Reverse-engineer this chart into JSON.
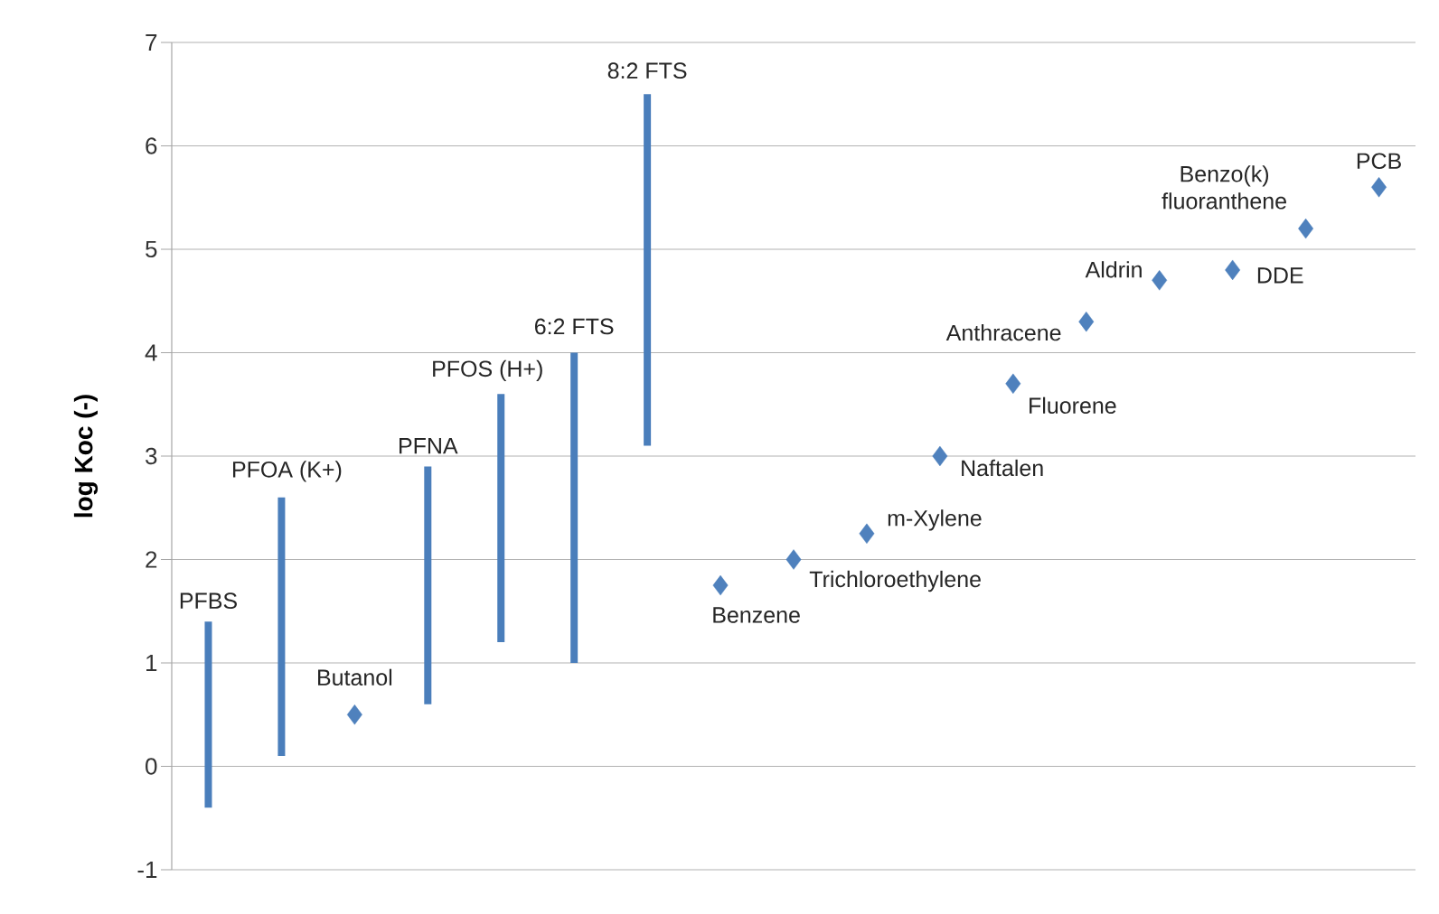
{
  "chart_data": {
    "type": "bar",
    "ylabel": "log Koc (-)",
    "categories": [
      null,
      null,
      null,
      null,
      null,
      null,
      null,
      null,
      null,
      null,
      null,
      null,
      null,
      null,
      null,
      null,
      null
    ],
    "series": [
      {
        "color": "#4a7ebb",
        "base": [
          -0.4,
          0.1,
          null,
          0.6,
          1.2,
          1.0,
          3.1,
          null,
          null,
          null,
          null,
          null,
          null,
          null,
          null,
          null,
          null
        ],
        "values": [
          1.8,
          2.5,
          null,
          2.3,
          2.4,
          3.0,
          3.4,
          null,
          null,
          null,
          null,
          null,
          null,
          null,
          null,
          null,
          null
        ]
      },
      {
        "type": "scatter",
        "color": "#4f81bd",
        "marker": "diamond",
        "values": [
          null,
          null,
          0.5,
          null,
          null,
          null,
          null,
          1.75,
          2.0,
          2.25,
          3.0,
          3.7,
          4.3,
          4.7,
          4.8,
          5.2,
          5.6
        ]
      }
    ],
    "annotations": [
      "PFBS",
      "PFOA (K+)",
      "Butanol",
      "PFNA",
      "PFOS (H+)",
      "6:2 FTS",
      "8:2 FTS",
      "Benzene",
      "Trichloroethylene",
      "m-Xylene",
      "Naftalen",
      "Fluorene",
      "Anthracene",
      "Aldrin",
      "DDE",
      "Benzo(k) fluoranthene",
      "PCB"
    ],
    "ylim": [
      -1,
      7
    ],
    "yticks": [
      -1,
      0,
      1,
      2,
      3,
      4,
      5,
      6,
      7
    ],
    "grid": "y"
  }
}
